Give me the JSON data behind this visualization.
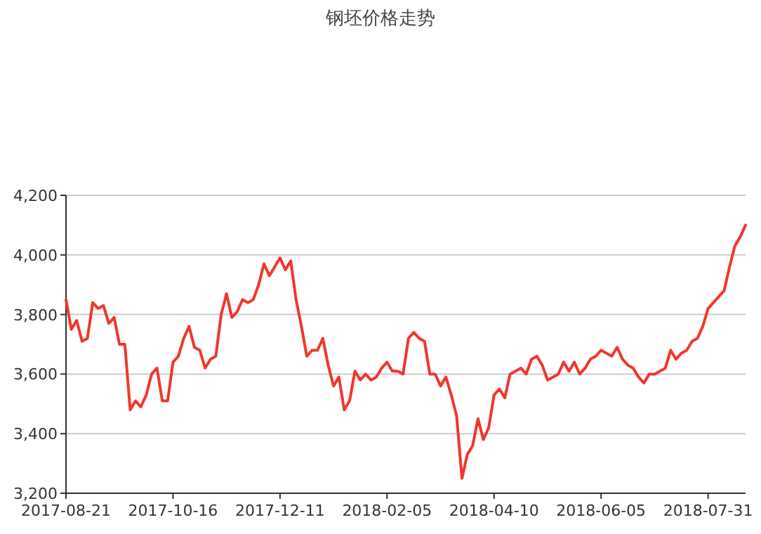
{
  "chart_data": {
    "type": "line",
    "title": "钢坯价格走势",
    "categories": [
      "2017-08-21",
      null,
      null,
      null,
      null,
      null,
      null,
      null,
      null,
      null,
      null,
      null,
      null,
      null,
      null,
      null,
      null,
      null,
      null,
      null,
      "2017-10-16",
      null,
      null,
      null,
      null,
      null,
      null,
      null,
      null,
      null,
      null,
      null,
      null,
      null,
      null,
      null,
      null,
      null,
      null,
      null,
      "2017-12-11",
      null,
      null,
      null,
      null,
      null,
      null,
      null,
      null,
      null,
      null,
      null,
      null,
      null,
      null,
      null,
      null,
      null,
      null,
      null,
      "2018-02-05",
      null,
      null,
      null,
      null,
      null,
      null,
      null,
      null,
      null,
      null,
      null,
      null,
      null,
      null,
      null,
      null,
      null,
      null,
      null,
      "2018-04-10",
      null,
      null,
      null,
      null,
      null,
      null,
      null,
      null,
      null,
      null,
      null,
      null,
      null,
      null,
      null,
      null,
      null,
      null,
      null,
      "2018-06-05",
      null,
      null,
      null,
      null,
      null,
      null,
      null,
      null,
      null,
      null,
      null,
      null,
      null,
      null,
      null,
      null,
      null,
      null,
      null,
      "2018-07-31",
      null,
      null,
      null,
      null,
      null,
      null,
      null
    ],
    "values": [
      3850,
      3750,
      3780,
      3710,
      3720,
      3840,
      3820,
      3830,
      3770,
      3790,
      3700,
      3700,
      3480,
      3510,
      3490,
      3530,
      3600,
      3620,
      3510,
      3510,
      3640,
      3660,
      3720,
      3760,
      3690,
      3680,
      3620,
      3650,
      3660,
      3800,
      3870,
      3790,
      3810,
      3850,
      3840,
      3850,
      3900,
      3970,
      3930,
      3960,
      3990,
      3950,
      3980,
      3850,
      3760,
      3660,
      3680,
      3680,
      3720,
      3630,
      3560,
      3590,
      3480,
      3510,
      3610,
      3580,
      3600,
      3580,
      3590,
      3620,
      3640,
      3610,
      3610,
      3600,
      3720,
      3740,
      3720,
      3710,
      3600,
      3600,
      3560,
      3590,
      3530,
      3460,
      3250,
      3330,
      3360,
      3450,
      3380,
      3420,
      3530,
      3550,
      3520,
      3600,
      3610,
      3620,
      3600,
      3650,
      3660,
      3630,
      3580,
      3590,
      3600,
      3640,
      3610,
      3640,
      3600,
      3620,
      3650,
      3660,
      3680,
      3670,
      3660,
      3690,
      3650,
      3630,
      3620,
      3590,
      3570,
      3600,
      3600,
      3610,
      3620,
      3680,
      3650,
      3670,
      3680,
      3710,
      3720,
      3760,
      3820,
      3840,
      3860,
      3880,
      3960,
      4030,
      4060,
      4100
    ],
    "color": "#f0372d",
    "ylim": [
      3200,
      4200
    ],
    "yticks": [
      {
        "value": 3200,
        "label": "3,200"
      },
      {
        "value": 3400,
        "label": "3,400"
      },
      {
        "value": 3600,
        "label": "3,600"
      },
      {
        "value": 3800,
        "label": "3,800"
      },
      {
        "value": 4000,
        "label": "4,000"
      },
      {
        "value": 4200,
        "label": "4,200"
      }
    ],
    "grid": "y"
  }
}
